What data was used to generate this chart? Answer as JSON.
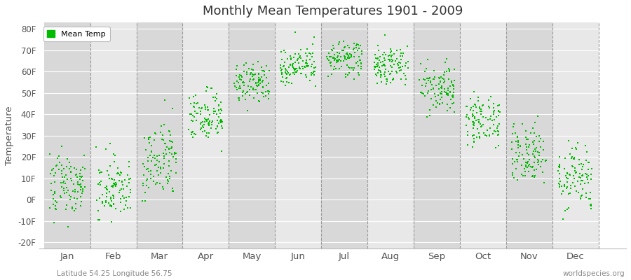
{
  "title": "Monthly Mean Temperatures 1901 - 2009",
  "ylabel": "Temperature",
  "ytick_labels": [
    "-20F",
    "-10F",
    "0F",
    "10F",
    "20F",
    "30F",
    "40F",
    "50F",
    "60F",
    "70F",
    "80F"
  ],
  "ytick_values": [
    -20,
    -10,
    0,
    10,
    20,
    30,
    40,
    50,
    60,
    70,
    80
  ],
  "ylim": [
    -23,
    83
  ],
  "xlim": [
    0.4,
    13.1
  ],
  "months": [
    "Jan",
    "Feb",
    "Mar",
    "Apr",
    "May",
    "Jun",
    "Jul",
    "Aug",
    "Sep",
    "Oct",
    "Nov",
    "Dec"
  ],
  "month_positions": [
    1,
    2,
    3,
    4,
    5,
    6,
    7,
    8,
    9,
    10,
    11,
    12
  ],
  "dot_color": "#00bb00",
  "legend_label": "Mean Temp",
  "subtitle_left": "Latitude 54.25 Longitude 56.75",
  "subtitle_right": "worldspecies.org",
  "n_years": 109,
  "monthly_means_F": [
    7.0,
    7.0,
    18.0,
    39.0,
    54.0,
    63.0,
    66.0,
    63.0,
    52.0,
    37.0,
    21.0,
    10.0
  ],
  "monthly_stds_F": [
    7.5,
    7.5,
    8.0,
    6.0,
    5.0,
    4.5,
    4.0,
    4.5,
    5.0,
    6.0,
    6.5,
    7.0
  ],
  "band_colors": [
    "#d8d8d8",
    "#e8e8e8"
  ]
}
